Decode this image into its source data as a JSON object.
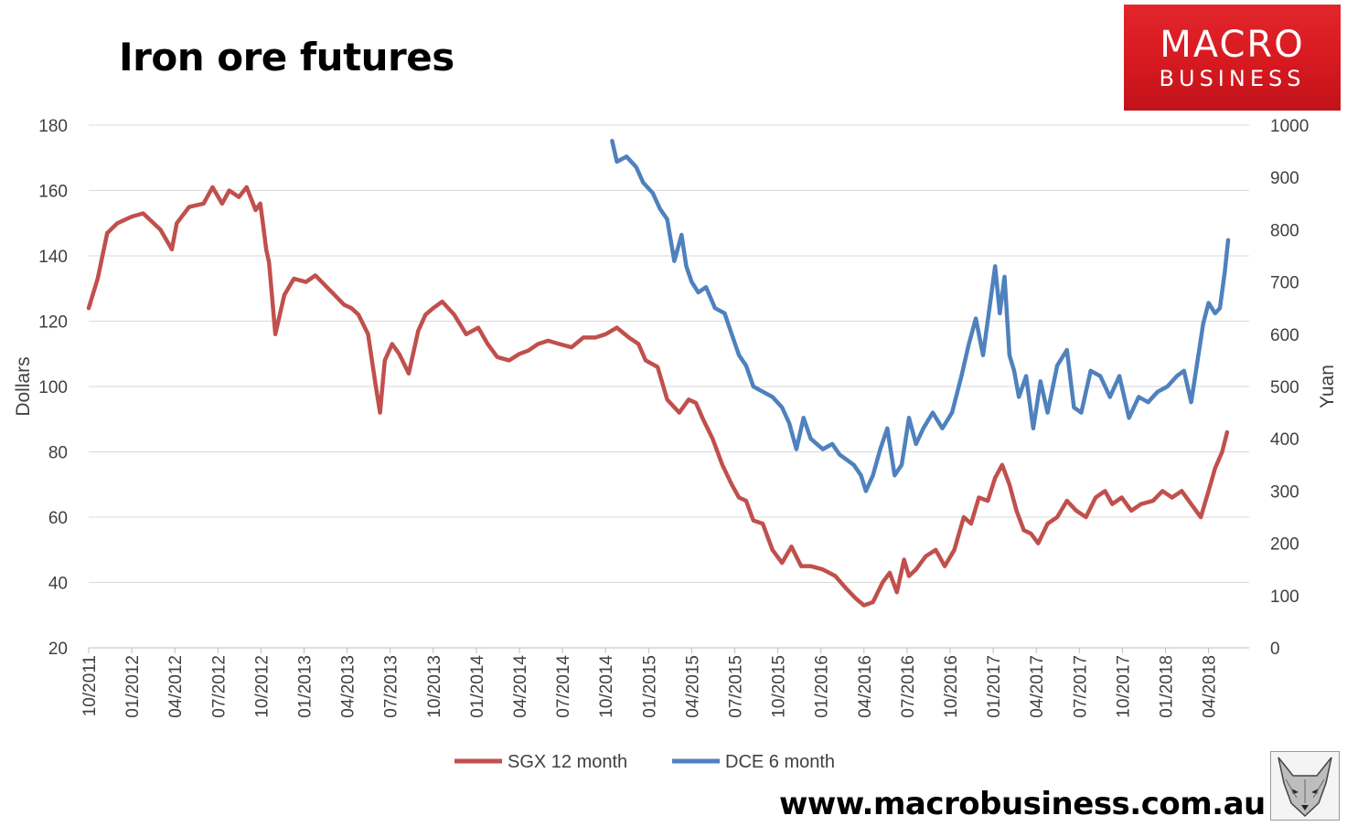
{
  "title": "Iron ore futures",
  "brand": {
    "line1": "MACRO",
    "line2": "BUSINESS"
  },
  "website": "www.macrobusiness.com.au",
  "logo_icon": "fox-head-icon",
  "colors": {
    "sgx": "#c0504d",
    "dce": "#4f81bd",
    "brand_red": "#d71920",
    "grid": "#d9d9d9"
  },
  "chart_data": {
    "type": "line",
    "title": "Iron ore futures",
    "ylabel": "Dollars",
    "y2label": "Yuan",
    "ylim": [
      20,
      180
    ],
    "y2lim": [
      0,
      1000
    ],
    "yticks": [
      20,
      40,
      60,
      80,
      100,
      120,
      140,
      160,
      180
    ],
    "y2ticks": [
      0,
      100,
      200,
      300,
      400,
      500,
      600,
      700,
      800,
      900,
      1000
    ],
    "xticks": [
      "10/2011",
      "01/2012",
      "04/2012",
      "07/2012",
      "10/2012",
      "01/2013",
      "04/2013",
      "07/2013",
      "10/2013",
      "01/2014",
      "04/2014",
      "07/2014",
      "10/2014",
      "01/2015",
      "04/2015",
      "07/2015",
      "10/2015",
      "01/2016",
      "04/2016",
      "07/2016",
      "10/2016",
      "01/2017",
      "04/2017",
      "07/2017",
      "10/2017",
      "01/2018",
      "04/2018"
    ],
    "grid": true,
    "legend_position": "bottom",
    "series": [
      {
        "name": "SGX 12 month",
        "axis": "left",
        "x": [
          "2011-10-01",
          "2011-10-20",
          "2011-11-10",
          "2011-12-01",
          "2012-01-01",
          "2012-01-25",
          "2012-03-01",
          "2012-03-25",
          "2012-04-05",
          "2012-05-01",
          "2012-06-01",
          "2012-06-20",
          "2012-07-10",
          "2012-07-25",
          "2012-08-15",
          "2012-09-01",
          "2012-09-20",
          "2012-09-30",
          "2012-10-05",
          "2012-10-12",
          "2012-10-18",
          "2012-11-01",
          "2012-11-20",
          "2012-12-10",
          "2013-01-05",
          "2013-01-25",
          "2013-02-15",
          "2013-03-05",
          "2013-03-25",
          "2013-04-10",
          "2013-04-25",
          "2013-05-15",
          "2013-06-01",
          "2013-06-10",
          "2013-06-20",
          "2013-07-05",
          "2013-07-20",
          "2013-08-10",
          "2013-08-30",
          "2013-09-15",
          "2013-10-01",
          "2013-10-20",
          "2013-11-15",
          "2013-12-10",
          "2014-01-05",
          "2014-01-25",
          "2014-02-15",
          "2014-03-10",
          "2014-04-01",
          "2014-04-20",
          "2014-05-10",
          "2014-06-01",
          "2014-06-25",
          "2014-07-20",
          "2014-08-15",
          "2014-09-10",
          "2014-10-01",
          "2014-10-25",
          "2014-11-20",
          "2014-12-10",
          "2014-12-25",
          "2015-01-20",
          "2015-02-10",
          "2015-03-05",
          "2015-03-25",
          "2015-04-10",
          "2015-04-25",
          "2015-05-15",
          "2015-06-05",
          "2015-06-25",
          "2015-07-10",
          "2015-07-25",
          "2015-08-10",
          "2015-08-30",
          "2015-09-20",
          "2015-10-10",
          "2015-10-30",
          "2015-11-20",
          "2015-12-10",
          "2016-01-05",
          "2016-02-01",
          "2016-02-25",
          "2016-03-15",
          "2016-04-01",
          "2016-04-20",
          "2016-05-10",
          "2016-05-25",
          "2016-06-10",
          "2016-06-25",
          "2016-07-05",
          "2016-07-20",
          "2016-08-10",
          "2016-09-01",
          "2016-09-20",
          "2016-10-10",
          "2016-10-30",
          "2016-11-15",
          "2016-12-01",
          "2016-12-20",
          "2017-01-05",
          "2017-01-20",
          "2017-02-05",
          "2017-02-20",
          "2017-03-05",
          "2017-03-20",
          "2017-04-05",
          "2017-04-25",
          "2017-05-15",
          "2017-06-05",
          "2017-06-25",
          "2017-07-15",
          "2017-08-05",
          "2017-08-25",
          "2017-09-10",
          "2017-09-30",
          "2017-10-20",
          "2017-11-10",
          "2017-12-05",
          "2017-12-25",
          "2018-01-15",
          "2018-02-05",
          "2018-02-25",
          "2018-03-15",
          "2018-04-01",
          "2018-04-15",
          "2018-04-30",
          "2018-05-10"
        ],
        "values": [
          124,
          133,
          147,
          150,
          152,
          153,
          148,
          142,
          150,
          155,
          156,
          161,
          156,
          160,
          158,
          161,
          154,
          156,
          150,
          142,
          138,
          116,
          128,
          133,
          132,
          134,
          131,
          128,
          125,
          124,
          122,
          116,
          100,
          92,
          108,
          113,
          110,
          104,
          117,
          122,
          124,
          126,
          122,
          116,
          118,
          113,
          109,
          108,
          110,
          111,
          113,
          114,
          113,
          112,
          115,
          115,
          116,
          118,
          115,
          113,
          108,
          106,
          96,
          92,
          96,
          95,
          90,
          84,
          76,
          70,
          66,
          65,
          59,
          58,
          50,
          46,
          51,
          45,
          45,
          44,
          42,
          38,
          35,
          33,
          34,
          40,
          43,
          37,
          47,
          42,
          44,
          48,
          50,
          45,
          50,
          60,
          58,
          66,
          65,
          72,
          76,
          70,
          62,
          56,
          55,
          52,
          58,
          60,
          65,
          62,
          60,
          66,
          68,
          64,
          66,
          62,
          64,
          65,
          68,
          66,
          68,
          64,
          60,
          68,
          75,
          80,
          86
        ]
      },
      {
        "name": "DCE 6 month",
        "axis": "right",
        "x": [
          "2014-10-15",
          "2014-10-25",
          "2014-11-15",
          "2014-12-05",
          "2014-12-20",
          "2015-01-10",
          "2015-01-25",
          "2015-02-10",
          "2015-02-25",
          "2015-03-10",
          "2015-03-20",
          "2015-04-01",
          "2015-04-15",
          "2015-05-01",
          "2015-05-20",
          "2015-06-10",
          "2015-06-25",
          "2015-07-10",
          "2015-07-25",
          "2015-08-10",
          "2015-08-30",
          "2015-09-20",
          "2015-10-10",
          "2015-10-25",
          "2015-11-10",
          "2015-11-25",
          "2015-12-10",
          "2016-01-05",
          "2016-01-25",
          "2016-02-10",
          "2016-02-25",
          "2016-03-10",
          "2016-03-25",
          "2016-04-05",
          "2016-04-20",
          "2016-05-05",
          "2016-05-20",
          "2016-06-05",
          "2016-06-20",
          "2016-07-05",
          "2016-07-20",
          "2016-08-05",
          "2016-08-25",
          "2016-09-15",
          "2016-10-05",
          "2016-10-25",
          "2016-11-10",
          "2016-11-25",
          "2016-12-10",
          "2016-12-25",
          "2017-01-05",
          "2017-01-15",
          "2017-01-25",
          "2017-02-05",
          "2017-02-15",
          "2017-02-25",
          "2017-03-10",
          "2017-03-25",
          "2017-04-10",
          "2017-04-25",
          "2017-05-15",
          "2017-06-05",
          "2017-06-20",
          "2017-07-05",
          "2017-07-25",
          "2017-08-15",
          "2017-09-05",
          "2017-09-25",
          "2017-10-15",
          "2017-11-05",
          "2017-11-25",
          "2017-12-15",
          "2018-01-05",
          "2018-01-25",
          "2018-02-10",
          "2018-02-25",
          "2018-03-10",
          "2018-03-20",
          "2018-04-01",
          "2018-04-15",
          "2018-04-25",
          "2018-05-05",
          "2018-05-12"
        ],
        "values": [
          970,
          930,
          940,
          920,
          890,
          870,
          840,
          820,
          740,
          790,
          730,
          700,
          680,
          690,
          650,
          640,
          600,
          560,
          540,
          500,
          490,
          480,
          460,
          430,
          380,
          440,
          400,
          380,
          390,
          370,
          360,
          350,
          330,
          300,
          330,
          380,
          420,
          330,
          350,
          440,
          390,
          420,
          450,
          420,
          450,
          520,
          580,
          630,
          560,
          660,
          730,
          640,
          710,
          560,
          530,
          480,
          520,
          420,
          510,
          450,
          540,
          570,
          460,
          450,
          530,
          520,
          480,
          520,
          440,
          480,
          470,
          490,
          500,
          520,
          530,
          470,
          560,
          620,
          660,
          640,
          650,
          720,
          780
        ]
      }
    ]
  }
}
